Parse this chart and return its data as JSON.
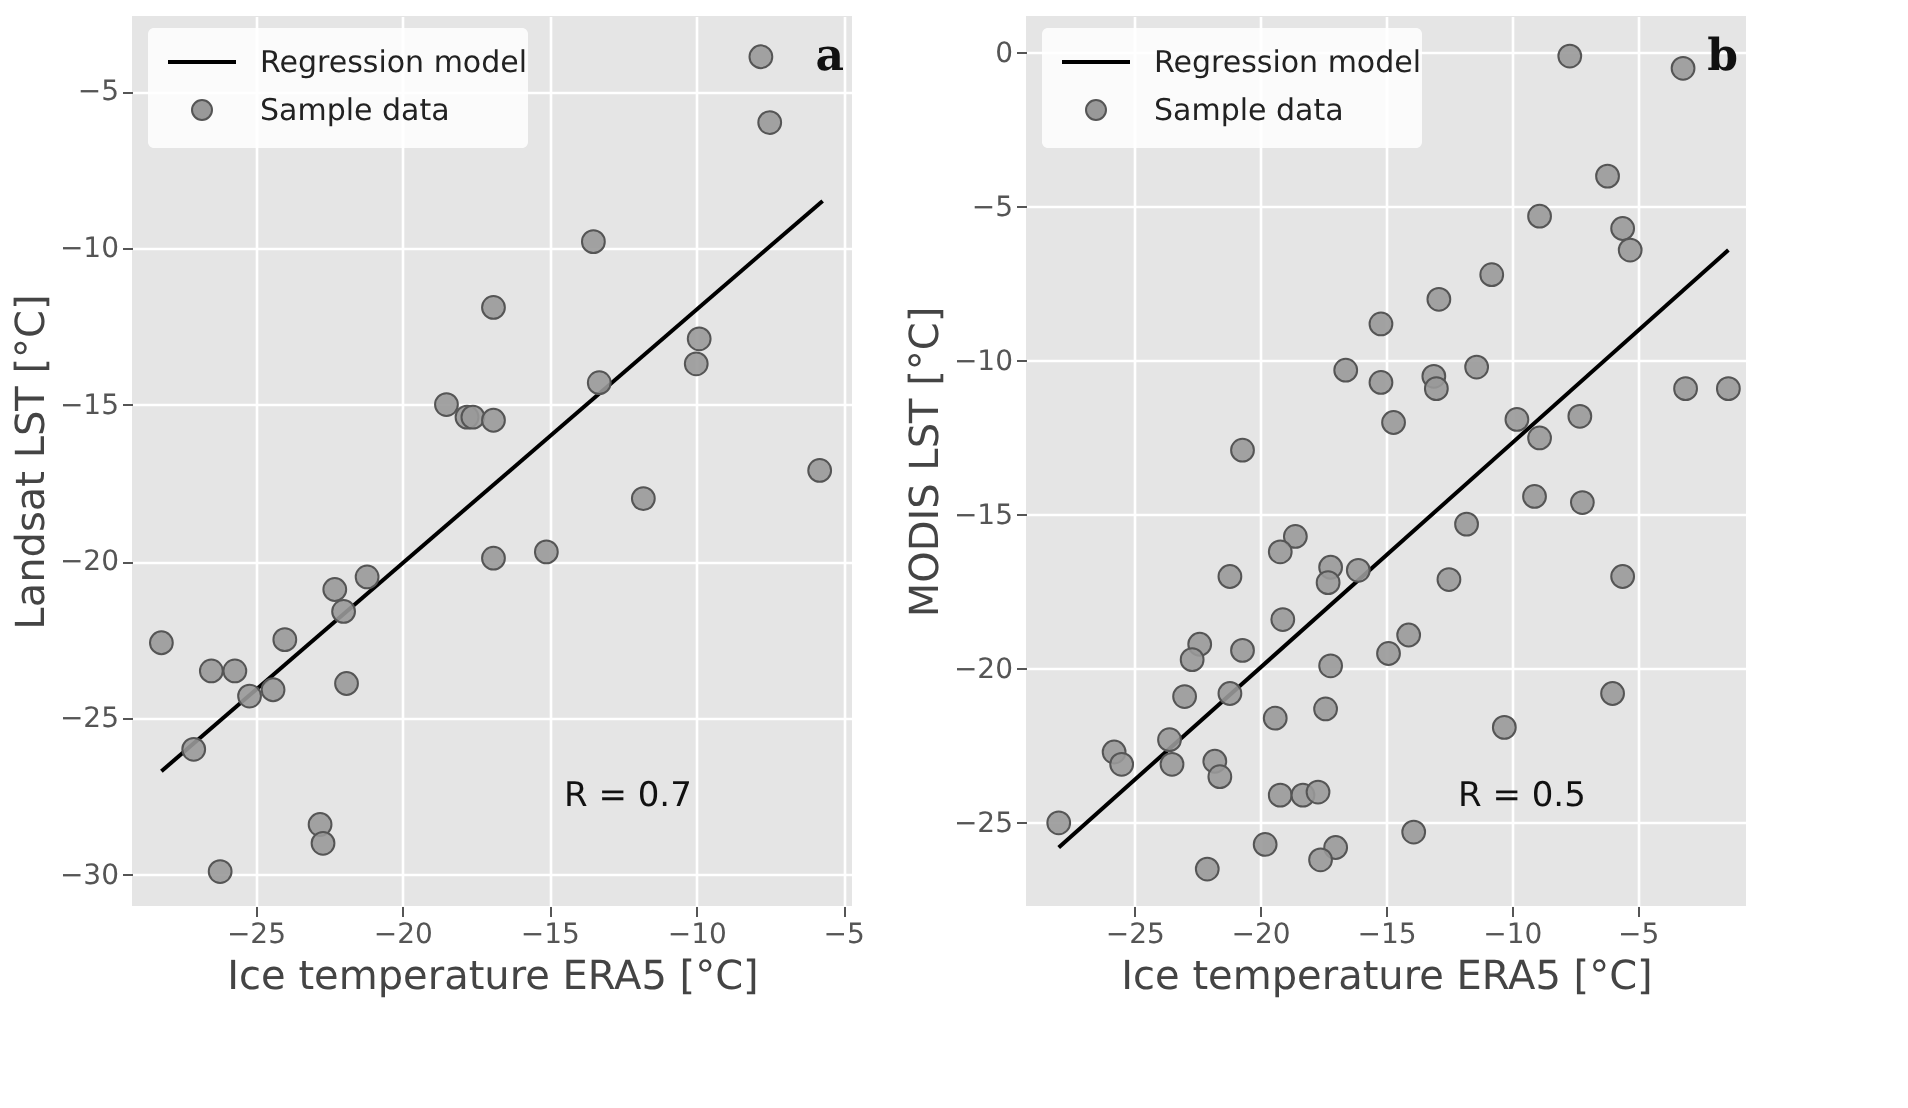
{
  "chart_data": [
    {
      "type": "scatter",
      "xlabel": "Ice temperature ERA5 [°C]",
      "ylabel": "Landsat LST [°C]",
      "xlim": [
        -29.2,
        -4.7
      ],
      "ylim": [
        -31.0,
        -2.6
      ],
      "xticks": [
        -25,
        -20,
        -15,
        -10,
        -5
      ],
      "yticks": [
        -30,
        -25,
        -20,
        -15,
        -10,
        -5
      ],
      "grid": true,
      "legend": "top left",
      "marker": "circle",
      "annotations": [
        "a",
        "R = 0.7"
      ],
      "series": [
        {
          "name": "Regression model",
          "type": "line",
          "marker": "none",
          "line_style": "solid",
          "color": "#000000",
          "x": [
            -28.2,
            -5.7
          ],
          "values": [
            -26.7,
            -8.5
          ]
        },
        {
          "name": "Sample data",
          "color": "#999999",
          "x": [
            -7.8,
            -7.5,
            -13.5,
            -16.9,
            -9.9,
            -10.0,
            -13.3,
            -18.5,
            -17.8,
            -17.6,
            -16.9,
            -5.8,
            -11.8,
            -16.9,
            -15.1,
            -28.2,
            -26.5,
            -25.7,
            -25.2,
            -24.4,
            -24.0,
            -22.3,
            -22.0,
            -21.2,
            -21.9,
            -27.1,
            -22.8,
            -22.7,
            -26.2
          ],
          "values": [
            -3.9,
            -6.0,
            -9.8,
            -11.9,
            -12.9,
            -13.7,
            -14.3,
            -15.0,
            -15.4,
            -15.4,
            -15.5,
            -17.1,
            -18.0,
            -19.9,
            -19.7,
            -22.6,
            -23.5,
            -23.5,
            -24.3,
            -24.1,
            -22.5,
            -20.9,
            -21.6,
            -20.5,
            -23.9,
            -26.0,
            -28.4,
            -29.0,
            -29.9
          ]
        }
      ]
    },
    {
      "type": "scatter",
      "xlabel": "Ice temperature ERA5 [°C]",
      "ylabel": "MODIS LST [°C]",
      "xlim": [
        -29.3,
        -0.7
      ],
      "ylim": [
        -27.7,
        1.2
      ],
      "xticks": [
        -25,
        -20,
        -15,
        -10,
        -5
      ],
      "yticks": [
        -25,
        -20,
        -15,
        -10,
        -5,
        0
      ],
      "grid": true,
      "legend": "top left",
      "marker": "circle",
      "annotations": [
        "b",
        "R = 0.5"
      ],
      "series": [
        {
          "name": "Regression model",
          "type": "line",
          "marker": "none",
          "line_style": "solid",
          "color": "#000000",
          "x": [
            -28.0,
            -1.4
          ],
          "values": [
            -25.8,
            -6.4
          ]
        },
        {
          "name": "Sample data",
          "color": "#999999",
          "x": [
            -7.7,
            -3.2,
            -6.2,
            -8.9,
            -5.6,
            -5.3,
            -10.8,
            -12.9,
            -15.2,
            -16.6,
            -15.2,
            -13.1,
            -13.0,
            -11.4,
            -14.7,
            -9.8,
            -8.9,
            -7.3,
            -3.1,
            -1.4,
            -20.7,
            -9.1,
            -7.2,
            -11.8,
            -18.6,
            -19.2,
            -21.2,
            -17.2,
            -17.3,
            -16.1,
            -12.5,
            -5.6,
            -19.1,
            -14.1,
            -14.9,
            -22.4,
            -22.7,
            -20.7,
            -17.2,
            -23.0,
            -21.2,
            -6.0,
            -19.4,
            -17.4,
            -10.3,
            -25.8,
            -25.5,
            -23.6,
            -23.5,
            -21.8,
            -21.6,
            -19.2,
            -18.3,
            -17.7,
            -28.0,
            -22.1,
            -19.8,
            -17.0,
            -17.6,
            -13.9
          ],
          "values": [
            -0.1,
            -0.5,
            -4.0,
            -5.3,
            -5.7,
            -6.4,
            -7.2,
            -8.0,
            -8.8,
            -10.3,
            -10.7,
            -10.5,
            -10.9,
            -10.2,
            -12.0,
            -11.9,
            -12.5,
            -11.8,
            -10.9,
            -10.9,
            -12.9,
            -14.4,
            -14.6,
            -15.3,
            -15.7,
            -16.2,
            -17.0,
            -16.7,
            -17.2,
            -16.8,
            -17.1,
            -17.0,
            -18.4,
            -18.9,
            -19.5,
            -19.2,
            -19.7,
            -19.4,
            -19.9,
            -20.9,
            -20.8,
            -20.8,
            -21.6,
            -21.3,
            -21.9,
            -22.7,
            -23.1,
            -22.3,
            -23.1,
            -23.0,
            -23.5,
            -24.1,
            -24.1,
            -24.0,
            -25.0,
            -26.5,
            -25.7,
            -25.8,
            -26.2,
            -25.3
          ]
        }
      ]
    }
  ]
}
